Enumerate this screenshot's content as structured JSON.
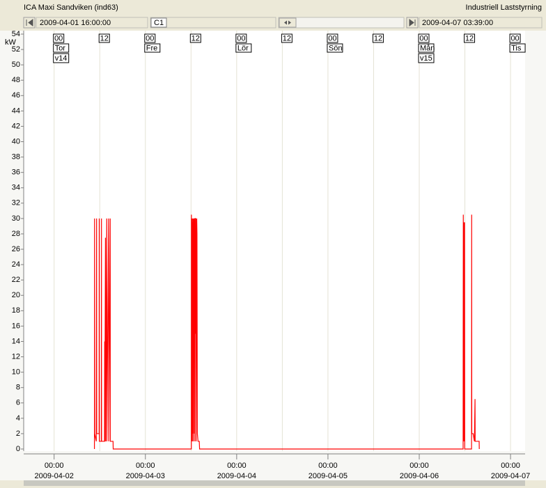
{
  "header": {
    "title": "ICA Maxi Sandviken (ind63)",
    "app": "Industriell Laststyrning"
  },
  "toolbar": {
    "start": "2009-04-01 16:00:00",
    "channel": "C1",
    "end": "2009-04-07 03:39:00"
  },
  "chart_data": {
    "type": "line",
    "y_label": "kW",
    "color": "#ff0000",
    "grid": true,
    "xlim": [
      "2009-04-01 16:00:00",
      "2009-04-07 03:39:00"
    ],
    "ylim": [
      0,
      54
    ],
    "yticks": [
      0,
      2,
      4,
      6,
      8,
      10,
      12,
      14,
      16,
      18,
      20,
      22,
      24,
      26,
      28,
      30,
      32,
      34,
      36,
      38,
      40,
      42,
      44,
      46,
      48,
      50,
      52,
      54
    ],
    "xticks": [
      {
        "value": "2009-04-02 00:00",
        "label": [
          "00:00",
          "2009-04-02"
        ]
      },
      {
        "value": "2009-04-03 00:00",
        "label": [
          "00:00",
          "2009-04-03"
        ]
      },
      {
        "value": "2009-04-04 00:00",
        "label": [
          "00:00",
          "2009-04-04"
        ]
      },
      {
        "value": "2009-04-05 00:00",
        "label": [
          "00:00",
          "2009-04-05"
        ]
      },
      {
        "value": "2009-04-06 00:00",
        "label": [
          "00:00",
          "2009-04-06"
        ]
      },
      {
        "value": "2009-04-07 00:00",
        "label": [
          "00:00",
          "2009-04-07"
        ]
      }
    ],
    "hour_markers": [
      {
        "x": "2009-04-02 00:00",
        "label": "00"
      },
      {
        "x": "2009-04-02 12:00",
        "label": "12"
      },
      {
        "x": "2009-04-03 00:00",
        "label": "00"
      },
      {
        "x": "2009-04-03 12:00",
        "label": "12"
      },
      {
        "x": "2009-04-04 00:00",
        "label": "00"
      },
      {
        "x": "2009-04-04 12:00",
        "label": "12"
      },
      {
        "x": "2009-04-05 00:00",
        "label": "00"
      },
      {
        "x": "2009-04-05 12:00",
        "label": "12"
      },
      {
        "x": "2009-04-06 00:00",
        "label": "00"
      },
      {
        "x": "2009-04-06 12:00",
        "label": "12"
      },
      {
        "x": "2009-04-07 00:00",
        "label": "00"
      }
    ],
    "day_markers": [
      {
        "x": "2009-04-02 00:00",
        "label": "Tor"
      },
      {
        "x": "2009-04-03 00:00",
        "label": "Fre"
      },
      {
        "x": "2009-04-04 00:00",
        "label": "Lör"
      },
      {
        "x": "2009-04-05 00:00",
        "label": "Sön"
      },
      {
        "x": "2009-04-06 00:00",
        "label": "Mån"
      },
      {
        "x": "2009-04-07 00:00",
        "label": "Tis"
      }
    ],
    "week_markers": [
      {
        "x": "2009-04-02 00:00",
        "label": "v14"
      },
      {
        "x": "2009-04-06 00:00",
        "label": "v15"
      }
    ],
    "x": [
      "2009-04-02 10:36",
      "2009-04-02 10:38",
      "2009-04-02 10:40",
      "2009-04-02 11:05",
      "2009-04-02 11:10",
      "2009-04-02 11:12",
      "2009-04-02 11:50",
      "2009-04-02 11:52",
      "2009-04-02 11:54",
      "2009-04-02 12:25",
      "2009-04-02 12:27",
      "2009-04-02 12:29",
      "2009-04-02 13:15",
      "2009-04-02 13:17",
      "2009-04-02 13:19",
      "2009-04-02 13:30",
      "2009-04-02 13:32",
      "2009-04-02 13:50",
      "2009-04-02 13:52",
      "2009-04-02 14:20",
      "2009-04-02 14:22",
      "2009-04-02 14:45",
      "2009-04-02 14:47",
      "2009-04-02 15:30",
      "2009-04-02 15:32",
      "2009-04-03 12:05",
      "2009-04-03 12:06",
      "2009-04-03 12:08",
      "2009-04-03 12:12",
      "2009-04-03 12:14",
      "2009-04-03 12:18",
      "2009-04-03 12:20",
      "2009-04-03 12:24",
      "2009-04-03 12:26",
      "2009-04-03 12:30",
      "2009-04-03 12:32",
      "2009-04-03 12:36",
      "2009-04-03 12:40",
      "2009-04-03 12:44",
      "2009-04-03 12:48",
      "2009-04-03 12:52",
      "2009-04-03 12:56",
      "2009-04-03 13:00",
      "2009-04-03 13:04",
      "2009-04-03 13:08",
      "2009-04-03 13:12",
      "2009-04-03 13:16",
      "2009-04-03 13:20",
      "2009-04-03 13:30",
      "2009-04-03 13:34",
      "2009-04-03 13:40",
      "2009-04-03 13:50",
      "2009-04-03 14:10",
      "2009-04-03 14:15",
      "2009-04-06 11:32",
      "2009-04-06 11:33",
      "2009-04-06 11:35",
      "2009-04-06 11:37",
      "2009-04-06 11:45",
      "2009-04-06 11:47",
      "2009-04-06 11:55",
      "2009-04-06 11:57",
      "2009-04-06 13:45",
      "2009-04-06 13:47",
      "2009-04-06 13:49",
      "2009-04-06 14:10",
      "2009-04-06 14:30",
      "2009-04-06 14:40",
      "2009-04-06 14:42",
      "2009-04-06 15:45",
      "2009-04-06 15:47"
    ],
    "values": [
      0,
      30,
      2,
      1,
      30,
      2,
      2,
      30,
      1,
      1,
      30,
      1,
      1,
      14,
      1,
      27.5,
      1,
      30,
      1,
      30,
      1,
      30,
      1,
      1,
      0,
      0,
      30.5,
      1,
      30,
      2,
      30,
      1,
      29.5,
      2,
      15,
      30,
      1,
      30,
      15,
      30,
      2,
      30,
      1,
      30,
      30,
      15,
      30,
      1,
      30,
      28,
      2,
      1,
      1,
      0,
      0,
      15,
      30.5,
      1,
      29.5,
      1,
      29.5,
      0,
      0,
      30.5,
      2,
      2,
      1,
      6.5,
      1,
      1,
      0
    ]
  }
}
